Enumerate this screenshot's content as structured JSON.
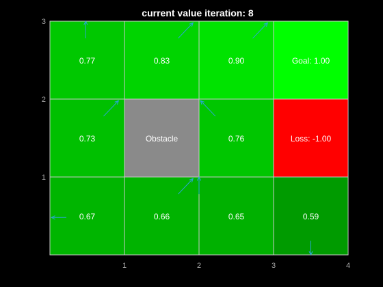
{
  "title": "current value iteration: 8",
  "colors": {
    "background": "#000000",
    "grid_line": "#c8c8c8",
    "arrow": "#2aa6d6",
    "tick_text": "#a8a8a8",
    "cell_text": "#ffffff",
    "obstacle": "#8a8a8a",
    "loss": "#ff0000",
    "goal": "#00ff00"
  },
  "axes": {
    "x_ticks": [
      "1",
      "2",
      "3",
      "4"
    ],
    "y_ticks": [
      "1",
      "2",
      "3"
    ]
  },
  "grid": {
    "cols": 4,
    "rows": 3,
    "cells": [
      {
        "col": 0,
        "row": 0,
        "label": "0.77",
        "value": 0.77,
        "color": "#00c800",
        "arrow": "up"
      },
      {
        "col": 1,
        "row": 0,
        "label": "0.83",
        "value": 0.83,
        "color": "#00d400",
        "arrow": "up-right"
      },
      {
        "col": 2,
        "row": 0,
        "label": "0.90",
        "value": 0.9,
        "color": "#00e300",
        "arrow": "up-right"
      },
      {
        "col": 3,
        "row": 0,
        "label": "Goal: 1.00",
        "value": 1.0,
        "color": "#00ff00",
        "arrow": ""
      },
      {
        "col": 0,
        "row": 1,
        "label": "0.73",
        "value": 0.73,
        "color": "#00c000",
        "arrow": "up-right"
      },
      {
        "col": 1,
        "row": 1,
        "label": "Obstacle",
        "value": null,
        "color": "#8a8a8a",
        "arrow": ""
      },
      {
        "col": 2,
        "row": 1,
        "label": "0.76",
        "value": 0.76,
        "color": "#00c600",
        "arrow": "up-left"
      },
      {
        "col": 3,
        "row": 1,
        "label": "Loss: -1.00",
        "value": -1.0,
        "color": "#ff0000",
        "arrow": ""
      },
      {
        "col": 0,
        "row": 2,
        "label": "0.67",
        "value": 0.67,
        "color": "#00b500",
        "arrow": "left"
      },
      {
        "col": 1,
        "row": 2,
        "label": "0.66",
        "value": 0.66,
        "color": "#00b300",
        "arrow": "up-right"
      },
      {
        "col": 2,
        "row": 2,
        "label": "0.65",
        "value": 0.65,
        "color": "#00b100",
        "arrow": "up"
      },
      {
        "col": 3,
        "row": 2,
        "label": "0.59",
        "value": 0.59,
        "color": "#009b00",
        "arrow": "down"
      }
    ]
  }
}
